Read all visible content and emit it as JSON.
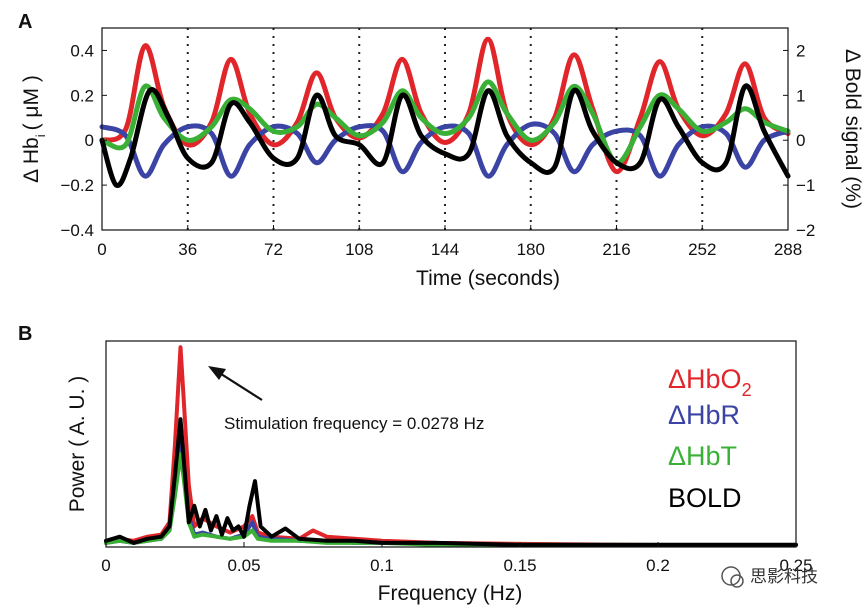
{
  "chart_data": [
    {
      "panel_label": "A",
      "type": "line",
      "xlabel": "Time (seconds)",
      "ylabel_left": "Δ Hb",
      "ylabel_left_sub": "i",
      "ylabel_left_unit": "( μM )",
      "ylabel_right": "Δ Bold signal (%)",
      "xlim": [
        0,
        288
      ],
      "ylim_left": [
        -0.4,
        0.5
      ],
      "ylim_right": [
        -2,
        2.5
      ],
      "x_ticks": [
        0,
        36,
        72,
        108,
        144,
        180,
        216,
        252,
        288
      ],
      "y_ticks_left": [
        -0.4,
        -0.2,
        0,
        0.2,
        0.4
      ],
      "y_tick_labels_left": [
        "−0.4",
        "−0.2",
        "0",
        "0.2",
        "0.4"
      ],
      "y_ticks_right": [
        -2,
        -1,
        0,
        1,
        2
      ],
      "y_tick_labels_right": [
        "−2",
        "−1",
        "0",
        "1",
        "2"
      ],
      "stimulus_lines_x": [
        36,
        72,
        108,
        144,
        180,
        216,
        252
      ],
      "stimulus_period_s": 36,
      "series": [
        {
          "key": "HbO",
          "color": "#e0262b",
          "axis": "left",
          "x": [
            0,
            10,
            18,
            26,
            36,
            46,
            54,
            62,
            72,
            82,
            90,
            98,
            108,
            118,
            126,
            134,
            144,
            154,
            162,
            170,
            180,
            190,
            198,
            206,
            216,
            226,
            234,
            242,
            252,
            262,
            270,
            278,
            288
          ],
          "y": [
            0,
            0.05,
            0.42,
            0.15,
            -0.02,
            0.08,
            0.36,
            0.12,
            -0.02,
            0.08,
            0.3,
            0.1,
            0.01,
            0.12,
            0.36,
            0.12,
            -0.01,
            0.12,
            0.45,
            0.12,
            -0.02,
            0.1,
            0.38,
            0.14,
            -0.14,
            0.1,
            0.35,
            0.14,
            0.02,
            0.12,
            0.34,
            0.1,
            0.03
          ]
        },
        {
          "key": "HbR",
          "color": "#3b44a4",
          "axis": "left",
          "x": [
            0,
            10,
            18,
            26,
            36,
            46,
            54,
            62,
            72,
            82,
            90,
            98,
            108,
            118,
            126,
            134,
            144,
            154,
            162,
            170,
            180,
            190,
            198,
            206,
            216,
            226,
            234,
            242,
            252,
            262,
            270,
            278,
            288
          ],
          "y": [
            0.06,
            0.02,
            -0.16,
            -0.02,
            0.06,
            0.03,
            -0.16,
            -0.02,
            0.06,
            0.03,
            -0.1,
            0.0,
            0.06,
            0.04,
            -0.14,
            -0.01,
            0.06,
            0.03,
            -0.16,
            -0.02,
            0.07,
            0.03,
            -0.14,
            -0.02,
            0.04,
            0.02,
            -0.16,
            -0.02,
            0.06,
            0.03,
            -0.12,
            0.0,
            0.04
          ]
        },
        {
          "key": "HbT",
          "color": "#3bb036",
          "axis": "left",
          "x": [
            0,
            10,
            18,
            26,
            36,
            46,
            54,
            62,
            72,
            82,
            90,
            98,
            108,
            118,
            126,
            134,
            144,
            154,
            162,
            170,
            180,
            190,
            198,
            206,
            216,
            226,
            234,
            242,
            252,
            262,
            270,
            278,
            288
          ],
          "y": [
            0.0,
            -0.02,
            0.24,
            0.1,
            0.0,
            0.06,
            0.18,
            0.14,
            0.04,
            0.06,
            0.16,
            0.1,
            0.02,
            0.08,
            0.22,
            0.1,
            0.03,
            0.1,
            0.26,
            0.12,
            0.0,
            0.08,
            0.24,
            0.12,
            -0.1,
            0.06,
            0.2,
            0.14,
            0.04,
            0.08,
            0.14,
            0.08,
            0.04
          ]
        },
        {
          "key": "BOLD",
          "color": "#000000",
          "axis": "right",
          "x": [
            0,
            6,
            12,
            20,
            28,
            36,
            46,
            54,
            62,
            72,
            82,
            90,
            98,
            108,
            118,
            126,
            134,
            144,
            154,
            162,
            170,
            180,
            190,
            198,
            206,
            216,
            226,
            234,
            242,
            252,
            262,
            270,
            278,
            288
          ],
          "y": [
            0.0,
            -1.0,
            -0.4,
            1.1,
            0.5,
            -0.4,
            -0.5,
            0.8,
            0.4,
            -0.4,
            -0.4,
            1.0,
            0.1,
            -0.1,
            -0.5,
            1.0,
            0.1,
            -0.3,
            -0.3,
            1.1,
            0.1,
            -0.5,
            -0.6,
            1.1,
            0.2,
            -0.5,
            -0.5,
            0.9,
            0.3,
            -0.5,
            -0.5,
            1.2,
            0.2,
            -0.8
          ]
        }
      ]
    },
    {
      "panel_label": "B",
      "type": "line",
      "xlabel": "Frequency (Hz)",
      "ylabel": "Power ( A. U. )",
      "xlim": [
        0,
        0.25
      ],
      "x_ticks": [
        0,
        0.05,
        0.1,
        0.15,
        0.2,
        0.25
      ],
      "x_tick_labels": [
        "0",
        "0.05",
        "0.1",
        "0.15",
        "0.2",
        "0.25"
      ],
      "ylim": [
        0,
        1
      ],
      "annotation": "Stimulation frequency = 0.0278 Hz",
      "annotation_arrow_target": [
        0.0278,
        0.95
      ],
      "legend_position": "right",
      "series": [
        {
          "key": "HbO",
          "label": "ΔHbO",
          "label_sub": "2",
          "color": "#e0262b",
          "x": [
            0,
            0.005,
            0.01,
            0.015,
            0.02,
            0.023,
            0.025,
            0.027,
            0.028,
            0.03,
            0.032,
            0.035,
            0.04,
            0.045,
            0.05,
            0.053,
            0.055,
            0.06,
            0.07,
            0.075,
            0.08,
            0.09,
            0.1,
            0.12,
            0.15,
            0.2,
            0.25
          ],
          "y": [
            0.02,
            0.04,
            0.03,
            0.05,
            0.06,
            0.12,
            0.5,
            0.97,
            0.75,
            0.3,
            0.1,
            0.14,
            0.1,
            0.07,
            0.1,
            0.15,
            0.07,
            0.05,
            0.04,
            0.08,
            0.05,
            0.04,
            0.03,
            0.02,
            0.015,
            0.01,
            0.01
          ]
        },
        {
          "key": "HbR",
          "label": "ΔHbR",
          "color": "#3b44a4",
          "x": [
            0,
            0.005,
            0.01,
            0.015,
            0.02,
            0.023,
            0.025,
            0.027,
            0.028,
            0.03,
            0.032,
            0.035,
            0.04,
            0.045,
            0.05,
            0.053,
            0.055,
            0.06,
            0.07,
            0.08,
            0.09,
            0.1,
            0.12,
            0.15,
            0.2,
            0.25
          ],
          "y": [
            0.02,
            0.03,
            0.02,
            0.03,
            0.04,
            0.08,
            0.3,
            0.55,
            0.4,
            0.15,
            0.06,
            0.07,
            0.05,
            0.04,
            0.06,
            0.12,
            0.05,
            0.04,
            0.03,
            0.03,
            0.02,
            0.02,
            0.015,
            0.01,
            0.01,
            0.01
          ]
        },
        {
          "key": "HbT",
          "label": "ΔHbT",
          "color": "#3bb036",
          "x": [
            0,
            0.005,
            0.01,
            0.015,
            0.02,
            0.023,
            0.025,
            0.027,
            0.028,
            0.03,
            0.032,
            0.035,
            0.04,
            0.045,
            0.05,
            0.053,
            0.055,
            0.06,
            0.07,
            0.08,
            0.09,
            0.1,
            0.12,
            0.15,
            0.2,
            0.25
          ],
          "y": [
            0.02,
            0.03,
            0.02,
            0.03,
            0.04,
            0.08,
            0.25,
            0.45,
            0.35,
            0.12,
            0.05,
            0.06,
            0.05,
            0.04,
            0.05,
            0.08,
            0.04,
            0.03,
            0.03,
            0.02,
            0.02,
            0.02,
            0.01,
            0.01,
            0.01,
            0.01
          ]
        },
        {
          "key": "BOLD",
          "label": "BOLD",
          "color": "#000000",
          "x": [
            0,
            0.005,
            0.01,
            0.015,
            0.02,
            0.023,
            0.025,
            0.027,
            0.028,
            0.03,
            0.032,
            0.034,
            0.036,
            0.038,
            0.04,
            0.042,
            0.044,
            0.046,
            0.048,
            0.05,
            0.052,
            0.054,
            0.056,
            0.06,
            0.065,
            0.07,
            0.08,
            0.09,
            0.1,
            0.12,
            0.15,
            0.2,
            0.25
          ],
          "y": [
            0.03,
            0.05,
            0.02,
            0.04,
            0.05,
            0.1,
            0.35,
            0.62,
            0.45,
            0.12,
            0.2,
            0.1,
            0.18,
            0.08,
            0.15,
            0.06,
            0.14,
            0.08,
            0.1,
            0.05,
            0.2,
            0.32,
            0.1,
            0.05,
            0.09,
            0.04,
            0.03,
            0.03,
            0.02,
            0.02,
            0.01,
            0.01,
            0.01
          ]
        }
      ]
    }
  ],
  "watermark": "思影科技"
}
